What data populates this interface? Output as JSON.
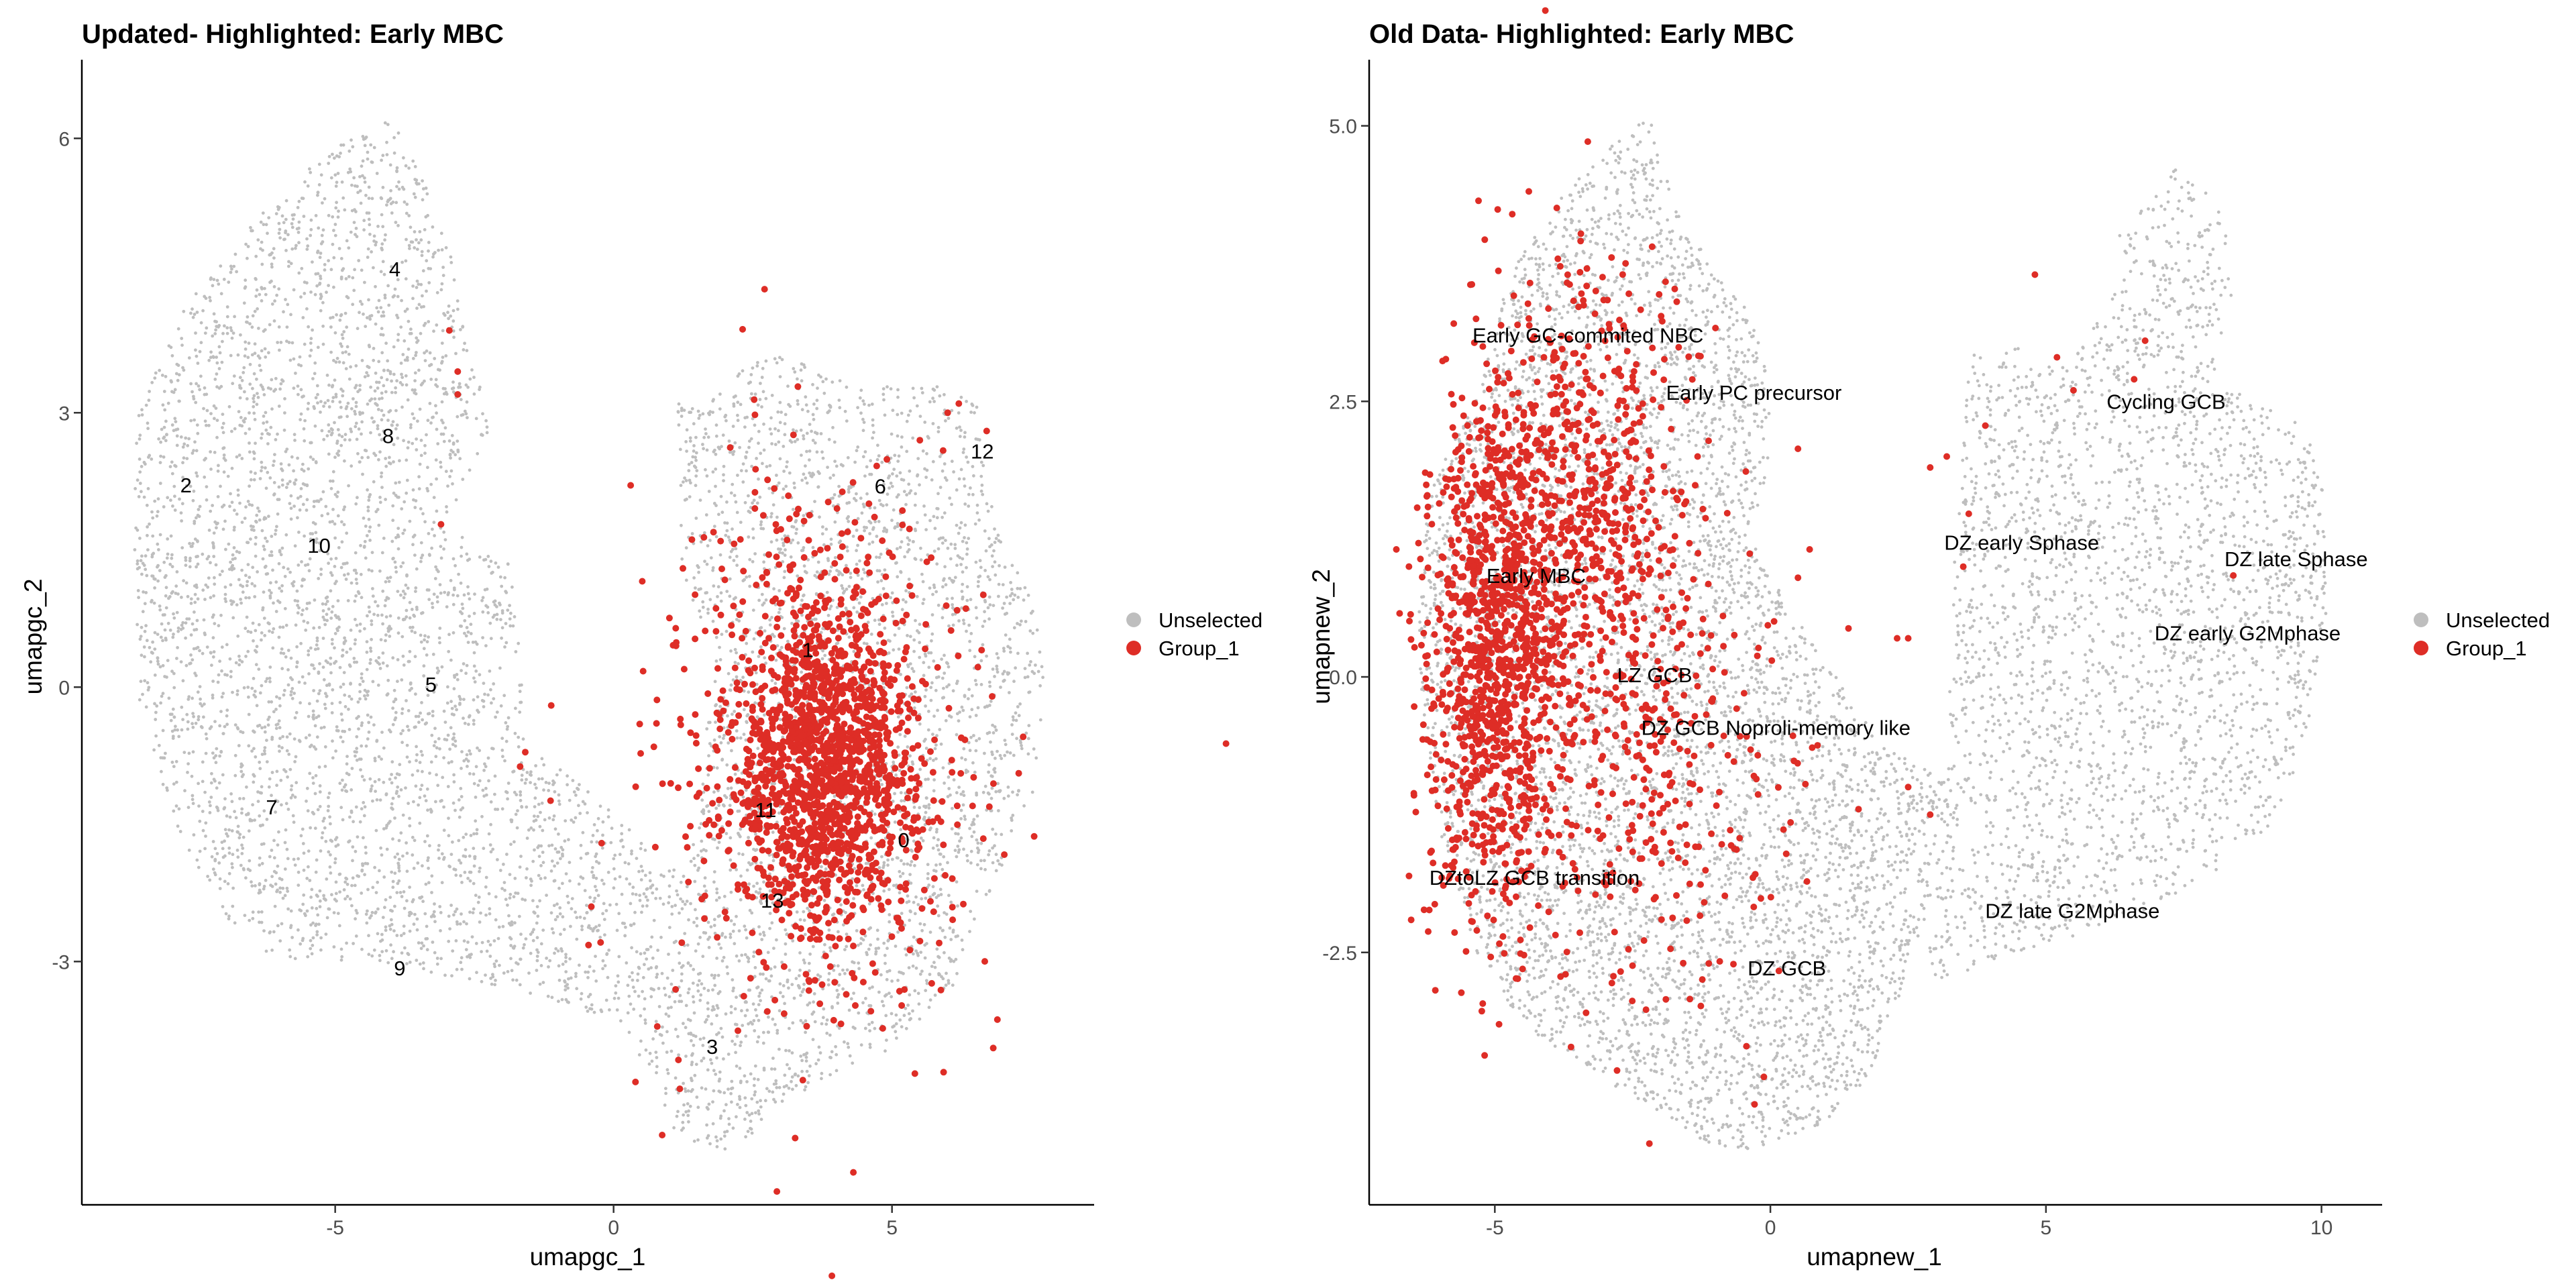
{
  "chart_data": [
    {
      "type": "scatter",
      "title": "Updated- Highlighted: Early MBC",
      "xlabel": "umapgc_1",
      "ylabel": "umapgc_2",
      "xlim": [
        -9.55,
        8.63
      ],
      "ylim": [
        -5.66,
        6.86
      ],
      "xticks": [
        {
          "v": -5,
          "label": "-5"
        },
        {
          "v": 0,
          "label": "0"
        },
        {
          "v": 5,
          "label": "5"
        }
      ],
      "yticks": [
        {
          "v": -3,
          "label": "-3"
        },
        {
          "v": 0,
          "label": "0"
        },
        {
          "v": 3,
          "label": "3"
        },
        {
          "v": 6,
          "label": "6"
        }
      ],
      "grid": false,
      "legend": {
        "placement": "right",
        "entries": [
          {
            "label": "Unselected",
            "color": "#BEBEBE"
          },
          {
            "label": "Group_1",
            "color": "#DE2D26"
          }
        ]
      },
      "unselected_regions": [
        {
          "density": 7000,
          "outline": [
            [
              -8.6,
              2.84
            ],
            [
              -7.93,
              4.01
            ],
            [
              -6.31,
              5.18
            ],
            [
              -5.13,
              5.89
            ],
            [
              -4.09,
              6.25
            ],
            [
              -3.94,
              6.16
            ],
            [
              -2.98,
              5.0
            ],
            [
              -2.76,
              4.28
            ],
            [
              -2.54,
              3.47
            ],
            [
              -2.02,
              2.93
            ],
            [
              -2.76,
              2.12
            ],
            [
              -3.06,
              1.76
            ],
            [
              -1.88,
              1.4
            ],
            [
              -1.73,
              0.68
            ],
            [
              -1.58,
              -0.58
            ],
            [
              -0.69,
              -1.02
            ],
            [
              0.19,
              -1.47
            ],
            [
              0.78,
              -1.92
            ],
            [
              1.37,
              -2.01
            ],
            [
              1.52,
              -1.11
            ],
            [
              1.82,
              0.32
            ],
            [
              1.23,
              1.22
            ],
            [
              1.15,
              3.11
            ],
            [
              1.96,
              3.29
            ],
            [
              2.7,
              3.69
            ],
            [
              3.74,
              3.51
            ],
            [
              4.92,
              3.29
            ],
            [
              5.95,
              3.29
            ],
            [
              6.54,
              3.11
            ],
            [
              6.84,
              1.76
            ],
            [
              7.58,
              0.86
            ],
            [
              7.73,
              0.05
            ],
            [
              7.58,
              -1.11
            ],
            [
              6.69,
              -2.37
            ],
            [
              6.1,
              -3.27
            ],
            [
              4.92,
              -3.99
            ],
            [
              3.59,
              -4.35
            ],
            [
              2.7,
              -4.8
            ],
            [
              1.96,
              -5.07
            ],
            [
              1.08,
              -4.89
            ],
            [
              0.64,
              -4.17
            ],
            [
              -0.1,
              -3.63
            ],
            [
              -1.43,
              -3.36
            ],
            [
              -2.76,
              -3.18
            ],
            [
              -4.39,
              -3.0
            ],
            [
              -6.16,
              -2.96
            ],
            [
              -6.9,
              -2.55
            ],
            [
              -7.93,
              -1.47
            ],
            [
              -8.52,
              -0.13
            ],
            [
              -8.6,
              1.22
            ]
          ]
        }
      ],
      "group_1_components": [
        {
          "cx": 3.8,
          "cy": -0.8,
          "sx": 0.75,
          "sy": 0.85,
          "n": 1300
        },
        {
          "cx": 3.6,
          "cy": -0.6,
          "sx": 1.3,
          "sy": 1.4,
          "n": 450
        },
        {
          "cx": 3.3,
          "cy": -1.5,
          "sx": 2.0,
          "sy": 1.9,
          "n": 120
        }
      ],
      "group_1_outliers": [
        [
          -2.95,
          3.9
        ],
        [
          -2.8,
          3.45
        ],
        [
          -2.8,
          3.2
        ],
        [
          -3.1,
          1.78
        ],
        [
          -1.12,
          -0.2
        ],
        [
          -0.4,
          -2.4
        ],
        [
          -0.45,
          -2.82
        ],
        [
          6.0,
          3.0
        ],
        [
          6.2,
          3.1
        ],
        [
          5.5,
          2.7
        ],
        [
          6.7,
          2.8
        ]
      ],
      "cluster_labels": [
        {
          "label": "0",
          "x": 5.21,
          "y": -1.67
        },
        {
          "label": "1",
          "x": 3.49,
          "y": 0.41
        },
        {
          "label": "2",
          "x": -7.68,
          "y": 2.21
        },
        {
          "label": "3",
          "x": 1.77,
          "y": -3.93
        },
        {
          "label": "4",
          "x": -3.93,
          "y": 4.57
        },
        {
          "label": "5",
          "x": -3.28,
          "y": 0.03
        },
        {
          "label": "6",
          "x": 4.79,
          "y": 2.2
        },
        {
          "label": "7",
          "x": -6.14,
          "y": -1.31
        },
        {
          "label": "8",
          "x": -4.05,
          "y": 2.75
        },
        {
          "label": "9",
          "x": -3.84,
          "y": -3.07
        },
        {
          "label": "10",
          "x": -5.29,
          "y": 1.55
        },
        {
          "label": "11",
          "x": 2.73,
          "y": -1.34
        },
        {
          "label": "12",
          "x": 6.62,
          "y": 2.58
        },
        {
          "label": "13",
          "x": 2.85,
          "y": -2.33
        }
      ]
    },
    {
      "type": "scatter",
      "title": "Old Data- Highlighted: Early MBC",
      "xlabel": "umapnew_1",
      "ylabel": "umapnew_2",
      "xlim": [
        -7.28,
        11.1
      ],
      "ylim": [
        -4.79,
        5.6
      ],
      "xticks": [
        {
          "v": -5,
          "label": "-5"
        },
        {
          "v": 0,
          "label": "0"
        },
        {
          "v": 5,
          "label": "5"
        },
        {
          "v": 10,
          "label": "10"
        }
      ],
      "yticks": [
        {
          "v": -2.5,
          "label": "-2.5"
        },
        {
          "v": 0,
          "label": "0.0"
        },
        {
          "v": 2.5,
          "label": "2.5"
        },
        {
          "v": 5,
          "label": "5.0"
        }
      ],
      "grid": false,
      "legend": {
        "placement": "right",
        "entries": [
          {
            "label": "Unselected",
            "color": "#BEBEBE"
          },
          {
            "label": "Group_1",
            "color": "#DE2D26"
          }
        ]
      },
      "unselected_regions": [
        {
          "density": 6000,
          "outline": [
            [
              -6.44,
              0.18
            ],
            [
              -6.21,
              1.67
            ],
            [
              -5.32,
              2.56
            ],
            [
              -4.72,
              3.68
            ],
            [
              -3.83,
              4.35
            ],
            [
              -2.79,
              4.87
            ],
            [
              -2.19,
              5.1
            ],
            [
              -1.74,
              4.28
            ],
            [
              -1.0,
              3.68
            ],
            [
              -0.4,
              3.31
            ],
            [
              -0.03,
              2.79
            ],
            [
              0.04,
              1.97
            ],
            [
              -0.4,
              1.3
            ],
            [
              0.19,
              0.77
            ],
            [
              0.94,
              0.18
            ],
            [
              1.98,
              -0.57
            ],
            [
              3.18,
              -0.94
            ],
            [
              2.88,
              -2.06
            ],
            [
              2.13,
              -3.25
            ],
            [
              1.68,
              -3.7
            ],
            [
              0.94,
              -4.07
            ],
            [
              -0.4,
              -4.29
            ],
            [
              -1.3,
              -4.22
            ],
            [
              -2.34,
              -3.85
            ],
            [
              -3.68,
              -3.47
            ],
            [
              -4.58,
              -3.1
            ],
            [
              -5.32,
              -2.5
            ],
            [
              -6.07,
              -1.31
            ]
          ]
        },
        {
          "density": 2600,
          "outline": [
            [
              3.18,
              -0.94
            ],
            [
              3.32,
              0.92
            ],
            [
              3.62,
              2.94
            ],
            [
              4.37,
              3.01
            ],
            [
              5.41,
              2.79
            ],
            [
              6.01,
              3.31
            ],
            [
              6.3,
              3.98
            ],
            [
              7.05,
              4.43
            ],
            [
              7.35,
              4.72
            ],
            [
              8.24,
              4.2
            ],
            [
              8.39,
              3.53
            ],
            [
              8.09,
              2.86
            ],
            [
              8.84,
              2.49
            ],
            [
              9.73,
              2.27
            ],
            [
              10.03,
              1.67
            ],
            [
              10.1,
              0.55
            ],
            [
              9.73,
              -0.57
            ],
            [
              9.14,
              -1.31
            ],
            [
              8.39,
              -1.68
            ],
            [
              7.05,
              -2.06
            ],
            [
              5.56,
              -2.35
            ],
            [
              4.07,
              -2.58
            ],
            [
              2.88,
              -2.8
            ],
            [
              2.88,
              -2.06
            ]
          ]
        }
      ],
      "group_1_components": [
        {
          "cx": -5.0,
          "cy": 0.2,
          "sx": 0.6,
          "sy": 1.2,
          "n": 1100
        },
        {
          "cx": -3.4,
          "cy": 1.4,
          "sx": 1.0,
          "sy": 1.1,
          "n": 700
        },
        {
          "cx": -2.0,
          "cy": -1.0,
          "sx": 1.2,
          "sy": 1.1,
          "n": 280
        }
      ],
      "group_1_outliers": [
        [
          4.8,
          3.65
        ],
        [
          5.2,
          2.9
        ],
        [
          5.5,
          2.6
        ],
        [
          6.6,
          2.7
        ],
        [
          6.8,
          3.05
        ],
        [
          3.9,
          2.28
        ],
        [
          3.2,
          2.0
        ],
        [
          2.9,
          1.9
        ],
        [
          3.6,
          1.48
        ],
        [
          3.5,
          1.0
        ],
        [
          8.4,
          0.92
        ],
        [
          2.3,
          0.35
        ],
        [
          2.5,
          0.35
        ],
        [
          1.6,
          -1.2
        ],
        [
          2.5,
          -1.0
        ],
        [
          2.9,
          -1.25
        ],
        [
          0.5,
          0.9
        ]
      ],
      "cluster_labels": [
        {
          "label": "Early GC-commited NBC",
          "x": -3.31,
          "y": 3.1
        },
        {
          "label": "Early PC precursor",
          "x": -0.3,
          "y": 2.58
        },
        {
          "label": "Cycling GCB",
          "x": 7.18,
          "y": 2.5
        },
        {
          "label": "DZ early  Sphase",
          "x": 4.56,
          "y": 1.22
        },
        {
          "label": "DZ late Sphase",
          "x": 9.54,
          "y": 1.07
        },
        {
          "label": "Early MBC",
          "x": -4.25,
          "y": 0.92
        },
        {
          "label": "DZ early G2Mphase",
          "x": 8.66,
          "y": 0.4
        },
        {
          "label": "LZ GCB",
          "x": -2.1,
          "y": 0.02
        },
        {
          "label": "DZ GCB Noproli-memory like",
          "x": 0.1,
          "y": -0.46
        },
        {
          "label": "DZtoLZ GCB transition",
          "x": -4.28,
          "y": -1.82
        },
        {
          "label": "DZ late G2Mphase",
          "x": 5.48,
          "y": -2.12
        },
        {
          "label": "DZ GCB",
          "x": 0.3,
          "y": -2.64
        }
      ]
    }
  ]
}
